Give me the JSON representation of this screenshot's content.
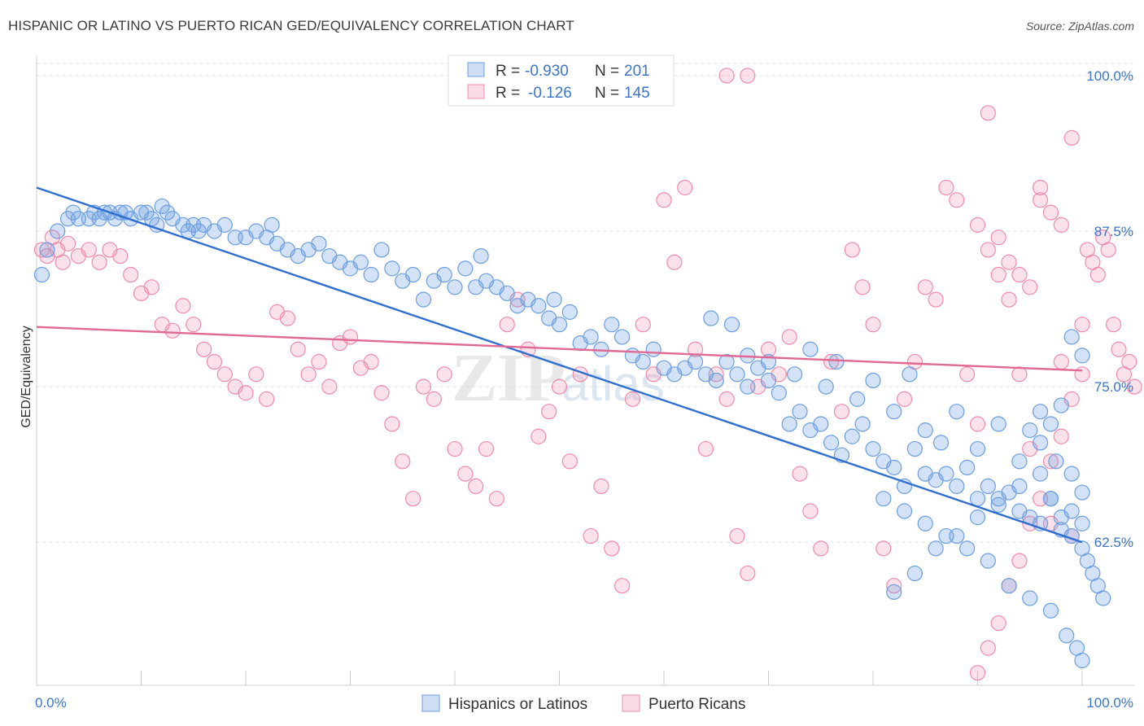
{
  "title": "HISPANIC OR LATINO VS PUERTO RICAN GED/EQUIVALENCY CORRELATION CHART",
  "source": "Source: ZipAtlas.com",
  "watermark": {
    "zip": "ZIP",
    "atlas": "atlas"
  },
  "chart_data": {
    "type": "scatter",
    "ylabel": "GED/Equivalency",
    "xlim": [
      0,
      100
    ],
    "ylim": [
      51,
      101.5
    ],
    "x_tick_labels": [
      "0.0%",
      "100.0%"
    ],
    "y_ticks": [
      {
        "value": 100.0,
        "label": "100.0%"
      },
      {
        "value": 87.5,
        "label": "87.5%"
      },
      {
        "value": 75.0,
        "label": "75.0%"
      },
      {
        "value": 62.5,
        "label": "62.5%"
      }
    ],
    "grid": true,
    "legend_position": "top-center",
    "series": [
      {
        "name": "Hispanics or Latinos",
        "color": "#6c9ee0",
        "fill": "rgba(108,158,224,0.30)",
        "line_color": "#2f6fd1",
        "R_label": "R =",
        "R": "-0.930",
        "N_label": "N =",
        "N": "201",
        "trend": {
          "x": [
            0,
            100
          ],
          "y": [
            91.0,
            62.5
          ]
        },
        "points": [
          [
            0.5,
            84
          ],
          [
            1,
            86
          ],
          [
            2,
            87.5
          ],
          [
            3,
            88.5
          ],
          [
            3.5,
            89
          ],
          [
            4,
            88.5
          ],
          [
            5,
            88.5
          ],
          [
            5.5,
            89
          ],
          [
            6,
            88.5
          ],
          [
            6.5,
            89
          ],
          [
            7,
            89
          ],
          [
            7.5,
            88.5
          ],
          [
            8,
            89
          ],
          [
            8.5,
            89
          ],
          [
            9,
            88.5
          ],
          [
            10,
            89
          ],
          [
            10.5,
            89
          ],
          [
            11,
            88.5
          ],
          [
            11.5,
            88
          ],
          [
            12,
            89.5
          ],
          [
            12.5,
            89
          ],
          [
            13,
            88.5
          ],
          [
            14,
            88
          ],
          [
            14.5,
            87.5
          ],
          [
            15,
            88
          ],
          [
            15.5,
            87.5
          ],
          [
            16,
            88
          ],
          [
            17,
            87.5
          ],
          [
            18,
            88
          ],
          [
            19,
            87
          ],
          [
            20,
            87
          ],
          [
            21,
            87.5
          ],
          [
            22,
            87
          ],
          [
            22.5,
            88
          ],
          [
            23,
            86.5
          ],
          [
            24,
            86
          ],
          [
            25,
            85.5
          ],
          [
            26,
            86
          ],
          [
            27,
            86.5
          ],
          [
            28,
            85.5
          ],
          [
            29,
            85
          ],
          [
            30,
            84.5
          ],
          [
            31,
            85
          ],
          [
            32,
            84
          ],
          [
            33,
            86
          ],
          [
            34,
            84.5
          ],
          [
            35,
            83.5
          ],
          [
            36,
            84
          ],
          [
            37,
            82
          ],
          [
            38,
            83.5
          ],
          [
            39,
            84
          ],
          [
            40,
            83
          ],
          [
            41,
            84.5
          ],
          [
            42,
            83
          ],
          [
            42.5,
            85.5
          ],
          [
            43,
            83.5
          ],
          [
            44,
            83
          ],
          [
            45,
            82.5
          ],
          [
            46,
            81.5
          ],
          [
            47,
            82
          ],
          [
            48,
            81.5
          ],
          [
            49,
            80.5
          ],
          [
            49.5,
            82
          ],
          [
            50,
            80
          ],
          [
            51,
            81
          ],
          [
            52,
            78.5
          ],
          [
            53,
            79
          ],
          [
            54,
            78
          ],
          [
            55,
            80
          ],
          [
            56,
            79
          ],
          [
            57,
            77.5
          ],
          [
            58,
            77
          ],
          [
            59,
            78
          ],
          [
            60,
            76.5
          ],
          [
            61,
            76
          ],
          [
            62,
            76.5
          ],
          [
            63,
            77
          ],
          [
            64,
            76
          ],
          [
            65,
            75.5
          ],
          [
            66,
            77
          ],
          [
            67,
            76
          ],
          [
            68,
            75
          ],
          [
            69,
            76.5
          ],
          [
            70,
            75.5
          ],
          [
            71,
            74.5
          ],
          [
            72,
            72
          ],
          [
            73,
            73
          ],
          [
            74,
            71.5
          ],
          [
            75,
            72
          ],
          [
            76,
            70.5
          ],
          [
            77,
            69.5
          ],
          [
            78,
            71
          ],
          [
            79,
            72
          ],
          [
            80,
            70
          ],
          [
            81,
            69
          ],
          [
            82,
            68.5
          ],
          [
            83,
            67
          ],
          [
            84,
            70
          ],
          [
            85,
            68
          ],
          [
            86,
            67.5
          ],
          [
            87,
            68
          ],
          [
            88,
            67
          ],
          [
            89,
            68.5
          ],
          [
            90,
            66
          ],
          [
            91,
            67
          ],
          [
            92,
            65.5
          ],
          [
            93,
            66.5
          ],
          [
            94,
            65
          ],
          [
            95,
            64.5
          ],
          [
            96,
            64
          ],
          [
            97,
            66
          ],
          [
            98,
            63.5
          ],
          [
            99,
            65
          ],
          [
            100,
            64
          ],
          [
            64.5,
            80.5
          ],
          [
            66.5,
            80
          ],
          [
            68,
            77.5
          ],
          [
            70,
            77
          ],
          [
            72.5,
            76
          ],
          [
            74,
            78
          ],
          [
            75.5,
            75
          ],
          [
            76.5,
            77
          ],
          [
            78.5,
            74
          ],
          [
            80,
            75.5
          ],
          [
            82,
            73
          ],
          [
            83.5,
            76
          ],
          [
            85,
            71.5
          ],
          [
            86.5,
            70.5
          ],
          [
            88,
            73
          ],
          [
            90,
            70
          ],
          [
            92,
            72
          ],
          [
            94,
            69
          ],
          [
            96,
            73
          ],
          [
            97.5,
            69
          ],
          [
            99,
            68
          ],
          [
            100,
            66.5
          ],
          [
            81,
            66
          ],
          [
            83,
            65
          ],
          [
            85,
            64
          ],
          [
            87,
            63
          ],
          [
            89,
            62
          ],
          [
            91,
            61
          ],
          [
            93,
            59
          ],
          [
            95,
            58
          ],
          [
            97,
            57
          ],
          [
            98.5,
            55
          ],
          [
            99.5,
            54
          ],
          [
            100,
            53
          ],
          [
            95,
            71.5
          ],
          [
            96,
            68
          ],
          [
            97,
            66
          ],
          [
            98,
            64.5
          ],
          [
            99,
            63
          ],
          [
            100,
            62
          ],
          [
            100.5,
            61
          ],
          [
            101,
            60
          ],
          [
            101.5,
            59
          ],
          [
            102,
            58
          ],
          [
            99,
            79
          ],
          [
            100,
            77.5
          ],
          [
            98,
            73.5
          ],
          [
            97,
            72
          ],
          [
            96,
            70.5
          ],
          [
            94,
            67
          ],
          [
            92,
            66
          ],
          [
            90,
            64.5
          ],
          [
            88,
            63
          ],
          [
            86,
            62
          ],
          [
            84,
            60
          ],
          [
            82,
            58.5
          ]
        ]
      },
      {
        "name": "Puerto Ricans",
        "color": "#f08cab",
        "fill": "rgba(240,140,171,0.25)",
        "line_color": "#e06a94",
        "R_label": "R =",
        "R": "-0.126",
        "N_label": "N =",
        "N": "145",
        "trend": {
          "x": [
            0,
            100
          ],
          "y": [
            79.8,
            76.3
          ]
        },
        "points": [
          [
            0.5,
            86
          ],
          [
            1,
            85.5
          ],
          [
            1.5,
            87
          ],
          [
            2,
            86
          ],
          [
            2.5,
            85
          ],
          [
            3,
            86.5
          ],
          [
            4,
            85.5
          ],
          [
            5,
            86
          ],
          [
            6,
            85
          ],
          [
            7,
            86
          ],
          [
            8,
            85.5
          ],
          [
            9,
            84
          ],
          [
            10,
            82.5
          ],
          [
            11,
            83
          ],
          [
            12,
            80
          ],
          [
            13,
            79.5
          ],
          [
            14,
            81.5
          ],
          [
            15,
            80
          ],
          [
            16,
            78
          ],
          [
            17,
            77
          ],
          [
            18,
            76
          ],
          [
            19,
            75
          ],
          [
            20,
            74.5
          ],
          [
            21,
            76
          ],
          [
            22,
            74
          ],
          [
            23,
            81
          ],
          [
            24,
            80.5
          ],
          [
            25,
            78
          ],
          [
            26,
            76
          ],
          [
            27,
            77
          ],
          [
            28,
            75
          ],
          [
            29,
            78.5
          ],
          [
            30,
            79
          ],
          [
            31,
            76.5
          ],
          [
            32,
            77
          ],
          [
            33,
            74.5
          ],
          [
            34,
            72
          ],
          [
            35,
            69
          ],
          [
            36,
            66
          ],
          [
            37,
            75
          ],
          [
            38,
            74
          ],
          [
            39,
            76
          ],
          [
            40,
            70
          ],
          [
            41,
            68
          ],
          [
            42,
            67
          ],
          [
            43,
            70
          ],
          [
            44,
            66
          ],
          [
            45,
            80
          ],
          [
            46,
            82
          ],
          [
            47,
            78
          ],
          [
            48,
            71
          ],
          [
            49,
            73
          ],
          [
            50,
            75
          ],
          [
            51,
            69
          ],
          [
            52,
            76
          ],
          [
            53,
            63
          ],
          [
            54,
            67
          ],
          [
            55,
            62
          ],
          [
            56,
            59
          ],
          [
            57,
            74
          ],
          [
            58,
            80
          ],
          [
            59,
            76
          ],
          [
            60,
            90
          ],
          [
            61,
            85
          ],
          [
            62,
            91
          ],
          [
            63,
            78
          ],
          [
            64,
            70
          ],
          [
            65,
            76
          ],
          [
            66,
            74
          ],
          [
            67,
            63
          ],
          [
            68,
            60
          ],
          [
            69,
            75
          ],
          [
            70,
            78
          ],
          [
            71,
            76
          ],
          [
            72,
            79
          ],
          [
            73,
            68
          ],
          [
            74,
            65
          ],
          [
            75,
            62
          ],
          [
            76,
            77
          ],
          [
            77,
            73
          ],
          [
            78,
            86
          ],
          [
            79,
            83
          ],
          [
            80,
            80
          ],
          [
            81,
            62
          ],
          [
            82,
            59
          ],
          [
            83,
            74
          ],
          [
            84,
            77
          ],
          [
            85,
            83
          ],
          [
            86,
            82
          ],
          [
            87,
            91
          ],
          [
            88,
            90
          ],
          [
            89,
            76
          ],
          [
            90,
            72
          ],
          [
            91,
            97
          ],
          [
            92,
            84
          ],
          [
            93,
            82
          ],
          [
            94,
            76
          ],
          [
            95,
            70
          ],
          [
            96,
            91
          ],
          [
            97,
            64
          ],
          [
            98,
            77
          ],
          [
            99,
            63
          ],
          [
            100,
            80
          ],
          [
            100.5,
            86
          ],
          [
            101,
            85
          ],
          [
            101.5,
            84
          ],
          [
            102,
            87
          ],
          [
            102.5,
            86
          ],
          [
            103,
            80
          ],
          [
            103.5,
            78
          ],
          [
            104,
            76
          ],
          [
            104.5,
            77
          ],
          [
            105,
            75
          ],
          [
            100,
            76
          ],
          [
            99,
            74
          ],
          [
            98,
            71
          ],
          [
            97,
            69
          ],
          [
            96,
            66
          ],
          [
            95,
            64
          ],
          [
            94,
            61
          ],
          [
            93,
            59
          ],
          [
            92,
            56
          ],
          [
            91,
            54
          ],
          [
            90,
            52
          ],
          [
            89,
            50
          ],
          [
            53,
            100
          ],
          [
            66,
            100
          ],
          [
            68,
            100
          ],
          [
            44,
            100
          ],
          [
            99,
            95
          ],
          [
            98,
            88
          ],
          [
            97,
            89
          ],
          [
            96,
            90
          ],
          [
            95,
            83
          ],
          [
            94,
            84
          ],
          [
            93,
            85
          ],
          [
            92,
            87
          ],
          [
            91,
            86
          ],
          [
            90,
            88
          ]
        ]
      }
    ]
  }
}
